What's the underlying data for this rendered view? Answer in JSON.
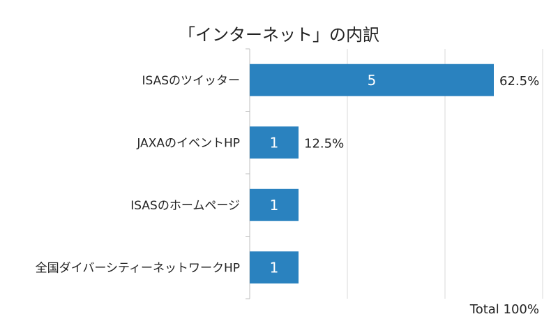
{
  "chart_data": {
    "type": "bar",
    "orientation": "horizontal",
    "title": "「インターネット」の内訳",
    "categories": [
      "ISASのツイッター",
      "JAXAのイベントHP",
      "ISASのホームページ",
      "全国ダイバーシティーネットワークHP"
    ],
    "values": [
      5,
      1,
      1,
      1
    ],
    "percent_labels": [
      "62.5%",
      "12.5%",
      "",
      ""
    ],
    "total_label": "Total 100%",
    "xlim": [
      0,
      6
    ],
    "grid": true,
    "bar_color": "#2a82bf"
  }
}
